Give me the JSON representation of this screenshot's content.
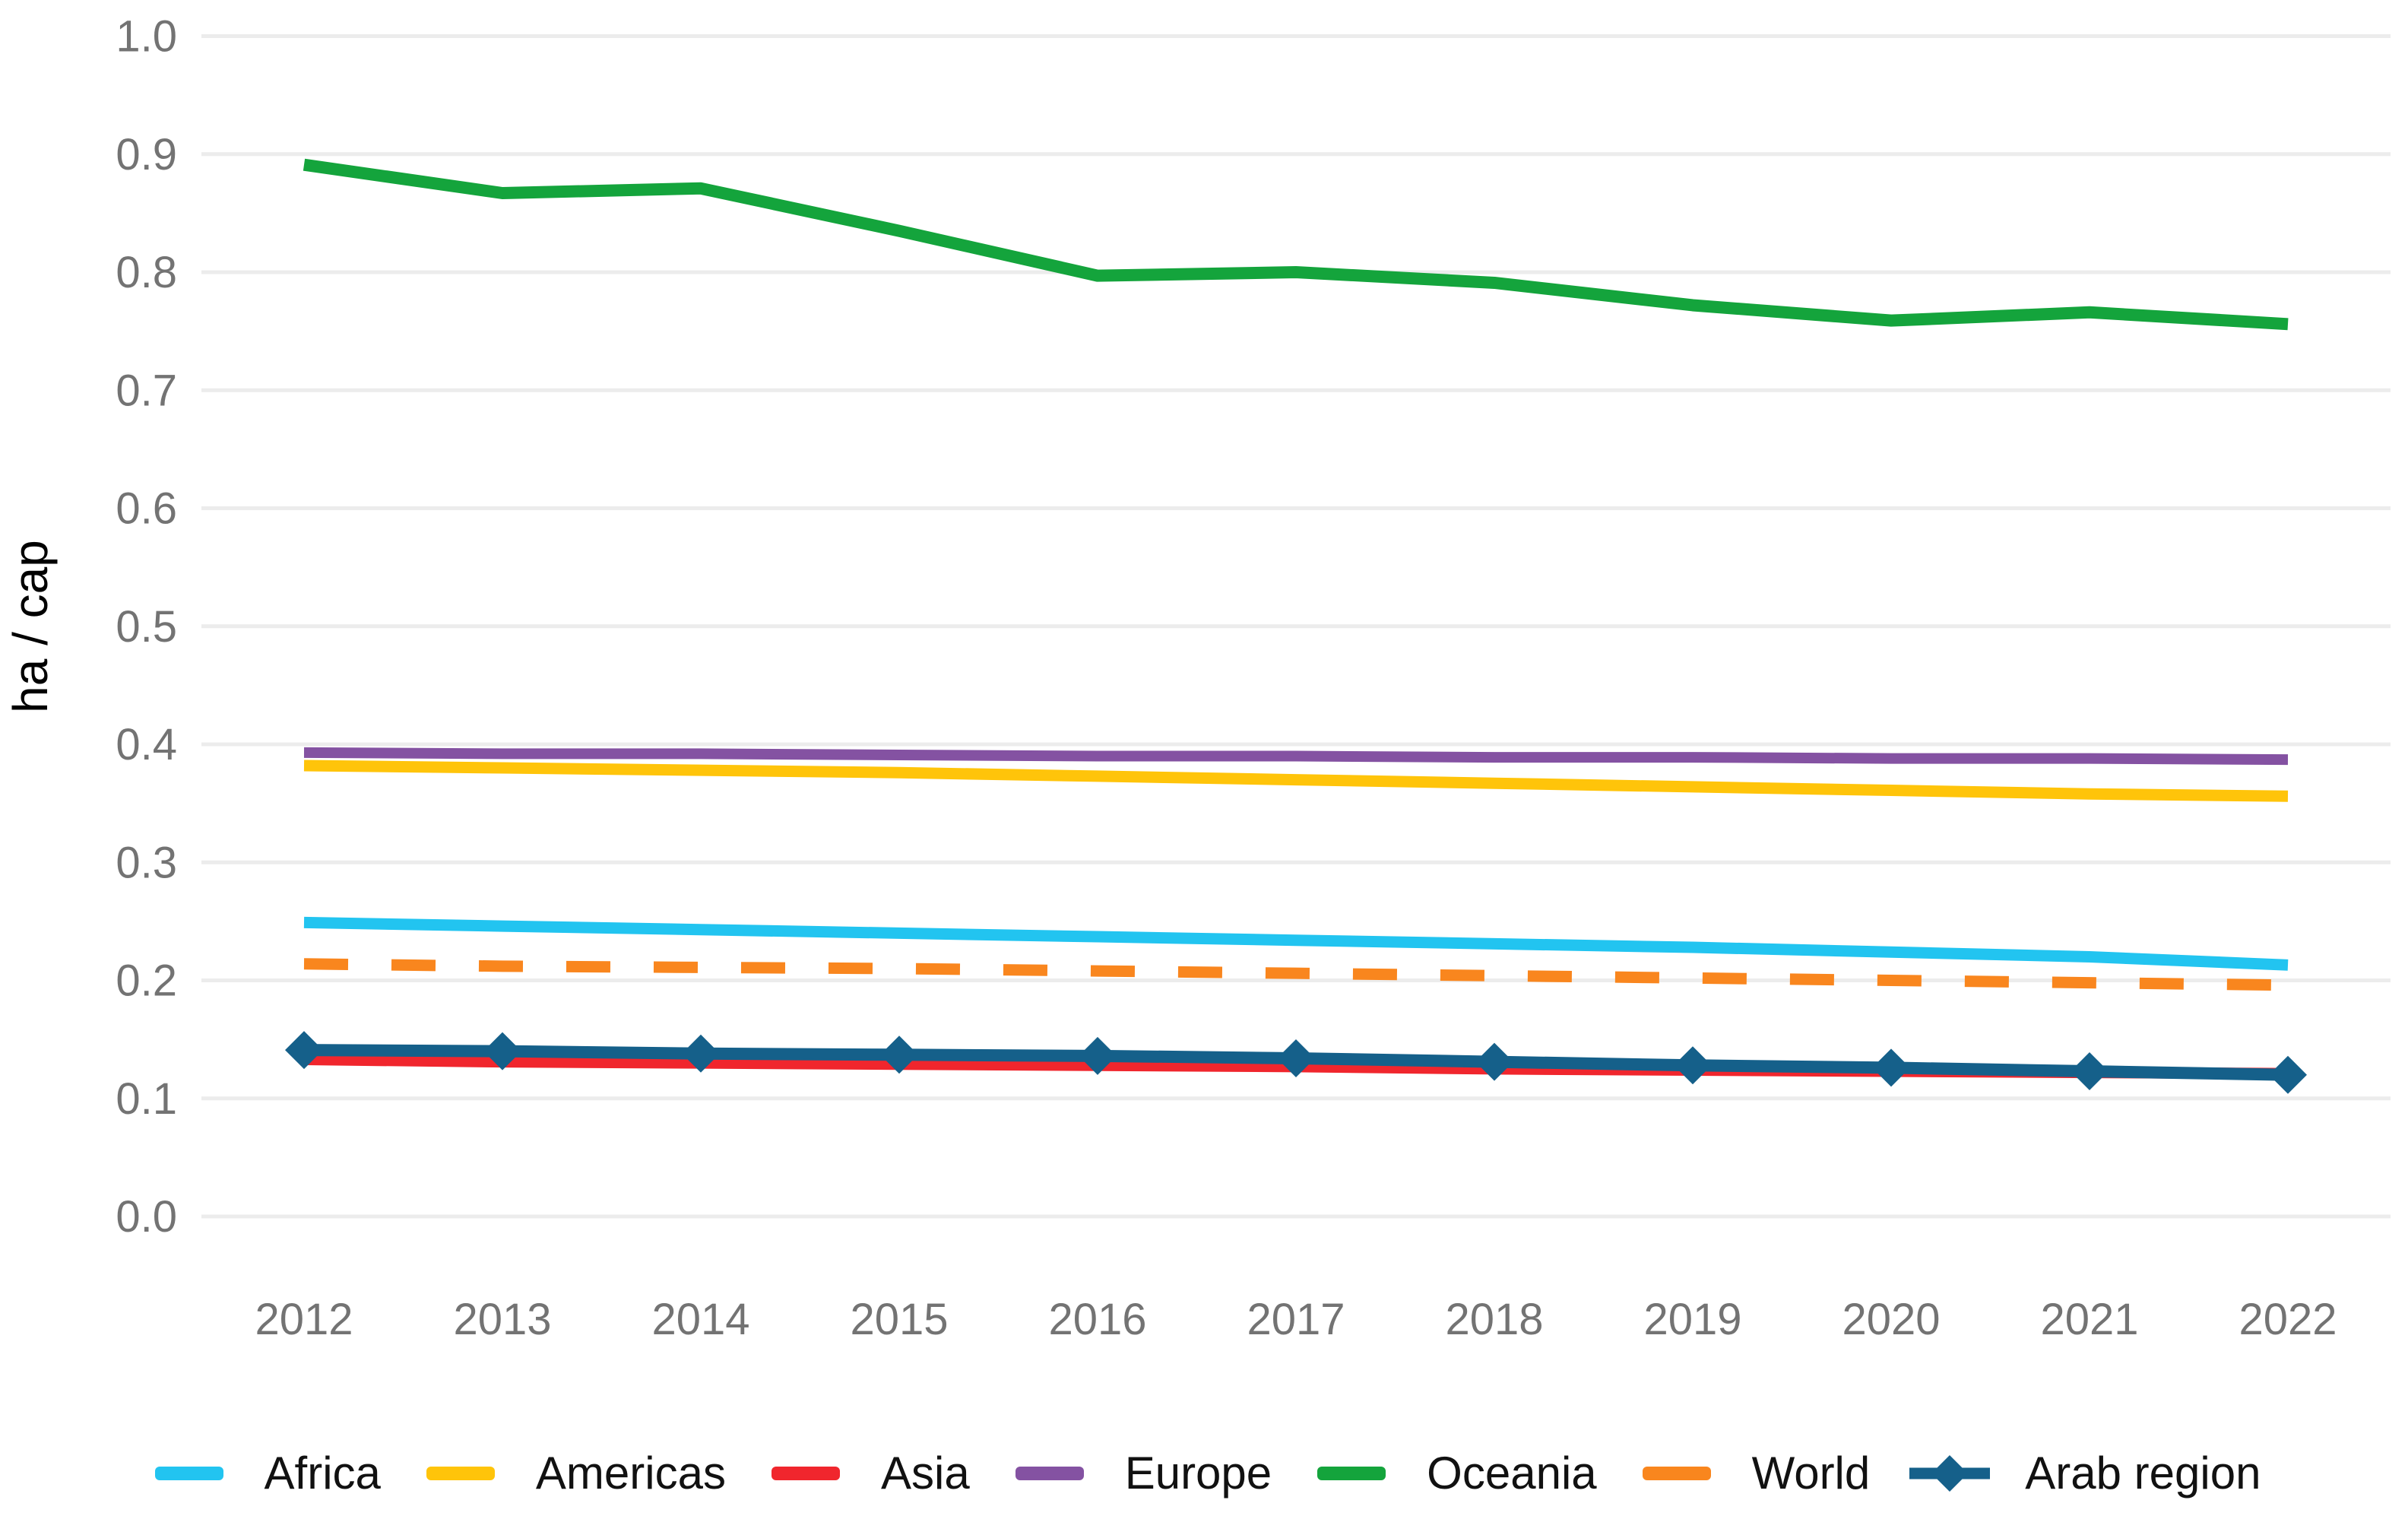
{
  "figure": {
    "background": "#ffffff",
    "gridline_color": "#ececec",
    "tick_label_color": "#737373",
    "legend_text_color": "#111111"
  },
  "chart_data": {
    "type": "line",
    "title": "",
    "xlabel": "",
    "ylabel": "ha / cap",
    "ylim": [
      0.0,
      1.0
    ],
    "ytick_step": 0.1,
    "grid": "horizontal",
    "legend_position": "bottom",
    "x": [
      2012,
      2013,
      2014,
      2015,
      2016,
      2017,
      2018,
      2019,
      2020,
      2021,
      2022
    ],
    "x_tick_labels": [
      "2012",
      "2013",
      "2014",
      "2015",
      "2016",
      "2017",
      "2018",
      "2019",
      "2020",
      "2021",
      "2022"
    ],
    "y_tick_labels": [
      "0.0",
      "0.1",
      "0.2",
      "0.3",
      "0.4",
      "0.5",
      "0.6",
      "0.7",
      "0.8",
      "0.9",
      "1.0"
    ],
    "y_tick_values": [
      0.0,
      0.1,
      0.2,
      0.3,
      0.4,
      0.5,
      0.6,
      0.7,
      0.8,
      0.9,
      1.0
    ],
    "series": [
      {
        "name": "Africa",
        "color": "#22c4f0",
        "style": "solid",
        "marker": "none",
        "values": [
          0.249,
          0.246,
          0.243,
          0.24,
          0.237,
          0.234,
          0.231,
          0.228,
          0.224,
          0.22,
          0.213
        ]
      },
      {
        "name": "Americas",
        "color": "#ffc40a",
        "style": "solid",
        "marker": "none",
        "values": [
          0.382,
          0.38,
          0.378,
          0.376,
          0.373,
          0.37,
          0.367,
          0.364,
          0.361,
          0.358,
          0.356
        ]
      },
      {
        "name": "Asia",
        "color": "#f0262d",
        "style": "solid",
        "marker": "none",
        "values": [
          0.133,
          0.131,
          0.13,
          0.129,
          0.128,
          0.127,
          0.125,
          0.124,
          0.123,
          0.122,
          0.121
        ]
      },
      {
        "name": "Europe",
        "color": "#8452a2",
        "style": "solid",
        "marker": "none",
        "values": [
          0.393,
          0.392,
          0.392,
          0.391,
          0.39,
          0.39,
          0.389,
          0.389,
          0.388,
          0.388,
          0.387
        ]
      },
      {
        "name": "Oceania",
        "color": "#14a43c",
        "style": "solid",
        "marker": "none",
        "values": [
          0.891,
          0.867,
          0.871,
          0.835,
          0.797,
          0.8,
          0.791,
          0.772,
          0.759,
          0.766,
          0.756
        ]
      },
      {
        "name": "World",
        "color": "#f9861e",
        "style": "dashed",
        "marker": "none",
        "values": [
          0.214,
          0.212,
          0.211,
          0.21,
          0.208,
          0.206,
          0.204,
          0.202,
          0.2,
          0.198,
          0.196
        ]
      },
      {
        "name": "Arab region",
        "color": "#15608a",
        "style": "solid",
        "marker": "diamond",
        "values": [
          0.141,
          0.14,
          0.138,
          0.137,
          0.136,
          0.134,
          0.131,
          0.128,
          0.126,
          0.123,
          0.12
        ]
      }
    ]
  }
}
